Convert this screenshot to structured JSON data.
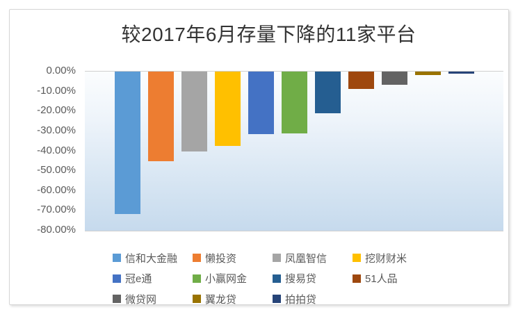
{
  "title": "较2017年6月存量下降的11家平台",
  "chart_data": {
    "type": "bar",
    "title": "较2017年6月存量下降的11家平台",
    "categories": [
      "信和大金融",
      "懒投资",
      "凤凰智信",
      "挖财财米",
      "冠e通",
      "小赢网金",
      "搜易贷",
      "51人品",
      "微贷网",
      "翼龙贷",
      "拍拍贷"
    ],
    "values": [
      -71.6,
      -44.9,
      -40.0,
      -37.5,
      -31.6,
      -31.0,
      -20.8,
      -8.8,
      -6.7,
      -1.8,
      -1.0
    ],
    "unit": "%",
    "xlabel": "",
    "ylabel": "",
    "ylim": [
      -80,
      0
    ],
    "ytick_step": 10,
    "ytick_labels": [
      "0.00%",
      "-10.00%",
      "-20.00%",
      "-30.00%",
      "-40.00%",
      "-50.00%",
      "-60.00%",
      "-70.00%",
      "-80.00%"
    ],
    "series_colors": [
      "#5B9BD5",
      "#ED7D31",
      "#A5A5A5",
      "#FFC000",
      "#4472C4",
      "#70AD47",
      "#255E91",
      "#9E480E",
      "#636363",
      "#997300",
      "#264478"
    ],
    "grid": false,
    "legend_position": "bottom"
  },
  "legend": {
    "items": [
      {
        "label": "信和大金融",
        "color": "#5B9BD5"
      },
      {
        "label": "懒投资",
        "color": "#ED7D31"
      },
      {
        "label": "凤凰智信",
        "color": "#A5A5A5"
      },
      {
        "label": "挖财财米",
        "color": "#FFC000"
      },
      {
        "label": "冠e通",
        "color": "#4472C4"
      },
      {
        "label": "小赢网金",
        "color": "#70AD47"
      },
      {
        "label": "搜易贷",
        "color": "#255E91"
      },
      {
        "label": "51人品",
        "color": "#9E480E"
      },
      {
        "label": "微贷网",
        "color": "#636363"
      },
      {
        "label": "翼龙贷",
        "color": "#997300"
      },
      {
        "label": "拍拍贷",
        "color": "#264478"
      }
    ]
  }
}
